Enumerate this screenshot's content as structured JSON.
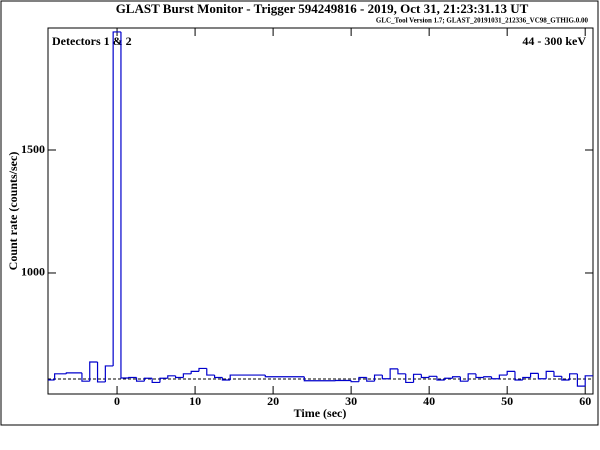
{
  "chart_data": {
    "type": "histogram",
    "title": "GLAST Burst Monitor  -  Trigger 594249816  -  2019, Oct 31, 21:23:31.13 UT",
    "subtitle": "GLC_Tool Version 1.7; GLAST_20191031_212336_VC98_GTHIG.0.00",
    "annotations": [
      "Detectors 1 & 2",
      "44 - 300 keV"
    ],
    "xlabel": "Time (sec)",
    "ylabel": "Count rate (counts/sec)",
    "bins": [
      -8.85,
      -8,
      -6.5,
      -4.5,
      -3.5,
      -2.5,
      -1.5,
      -0.5,
      0.5,
      1.5,
      2.5,
      3.5,
      4.5,
      5.5,
      6.5,
      7.5,
      8.5,
      9.5,
      10.5,
      11.5,
      12.5,
      13.5,
      14.5,
      19,
      24,
      28,
      30,
      31,
      32,
      33,
      34,
      35,
      36,
      37,
      38,
      39,
      40,
      41,
      42,
      43,
      44,
      45,
      46,
      47,
      48,
      49,
      50,
      51,
      52,
      53,
      54,
      55,
      56,
      57,
      58,
      59,
      60,
      61
    ],
    "values": [
      565,
      590,
      594,
      560,
      638,
      557,
      622,
      1980,
      573,
      575,
      560,
      572,
      555,
      572,
      582,
      575,
      590,
      600,
      612,
      585,
      575,
      565,
      585,
      578,
      562,
      563,
      558,
      575,
      560,
      585,
      570,
      610,
      590,
      555,
      588,
      575,
      580,
      565,
      572,
      578,
      560,
      590,
      575,
      578,
      570,
      585,
      600,
      565,
      575,
      592,
      570,
      600,
      580,
      565,
      590,
      540,
      582
    ],
    "color": "#0000cc",
    "background_level": 569,
    "xlim": [
      -8.85,
      61
    ],
    "xticks": [
      0,
      10,
      20,
      30,
      40,
      50,
      60
    ],
    "ylim": [
      508,
      1996
    ],
    "yticks": [
      1000,
      1500
    ]
  }
}
